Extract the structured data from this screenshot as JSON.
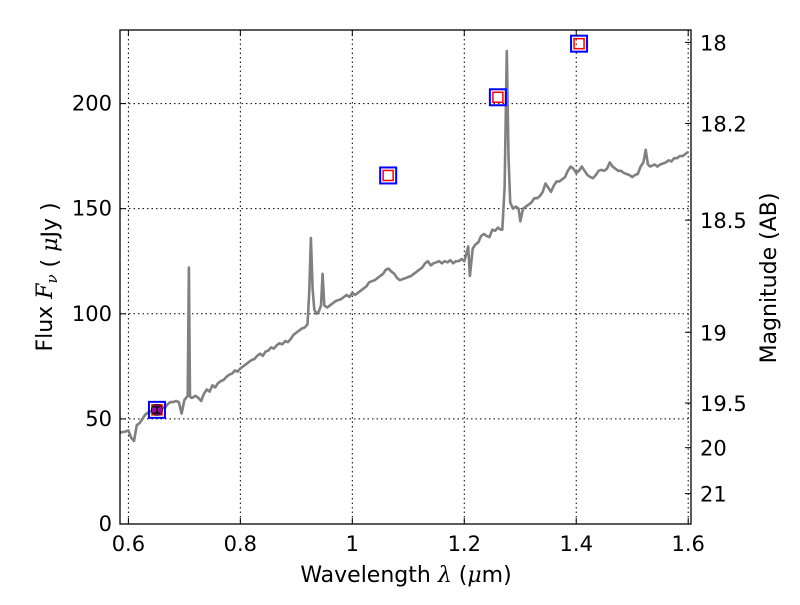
{
  "chart_data": {
    "type": "line",
    "xlabel": "Wavelength  λ (μm)",
    "ylabel": "Flux  F_ν  ( μJy )",
    "y2label": "Magnitude (AB)",
    "xlim": [
      0.585,
      1.605
    ],
    "ylim": [
      0,
      235
    ],
    "grid": true,
    "x_ticks": [
      {
        "value": 0.6,
        "label": "0.6"
      },
      {
        "value": 0.8,
        "label": "0.8"
      },
      {
        "value": 1.0,
        "label": "1"
      },
      {
        "value": 1.2,
        "label": "1.2"
      },
      {
        "value": 1.4,
        "label": "1.4"
      },
      {
        "value": 1.6,
        "label": "1.6"
      }
    ],
    "y_ticks": [
      {
        "value": 0,
        "label": "0"
      },
      {
        "value": 50,
        "label": "50"
      },
      {
        "value": 100,
        "label": "100"
      },
      {
        "value": 150,
        "label": "150"
      },
      {
        "value": 200,
        "label": "200"
      }
    ],
    "y2_ticks": [
      {
        "magnitude": 18,
        "label": "18"
      },
      {
        "magnitude": 18.2,
        "label": "18.2"
      },
      {
        "magnitude": 18.5,
        "label": "18.5"
      },
      {
        "magnitude": 19,
        "label": "19"
      },
      {
        "magnitude": 19.5,
        "label": "19.5"
      },
      {
        "magnitude": 20,
        "label": "20"
      },
      {
        "magnitude": 21,
        "label": "21"
      }
    ],
    "series": [
      {
        "kind": "spectrum",
        "color": "#808080",
        "points": [
          [
            0.585,
            43.5
          ],
          [
            0.595,
            44
          ],
          [
            0.6,
            44.5
          ],
          [
            0.605,
            41
          ],
          [
            0.61,
            39.5
          ],
          [
            0.615,
            47
          ],
          [
            0.62,
            48
          ],
          [
            0.625,
            50
          ],
          [
            0.63,
            52
          ],
          [
            0.635,
            53
          ],
          [
            0.64,
            53.5
          ],
          [
            0.645,
            55
          ],
          [
            0.65,
            55
          ],
          [
            0.655,
            55.5
          ],
          [
            0.66,
            56
          ],
          [
            0.665,
            55
          ],
          [
            0.67,
            57
          ],
          [
            0.675,
            58
          ],
          [
            0.68,
            58
          ],
          [
            0.685,
            58.5
          ],
          [
            0.69,
            58
          ],
          [
            0.695,
            52.5
          ],
          [
            0.7,
            59
          ],
          [
            0.703,
            60
          ],
          [
            0.706,
            61
          ],
          [
            0.708,
            122
          ],
          [
            0.71,
            60.5
          ],
          [
            0.713,
            60
          ],
          [
            0.717,
            60.5
          ],
          [
            0.72,
            61
          ],
          [
            0.725,
            60
          ],
          [
            0.73,
            58.5
          ],
          [
            0.735,
            62
          ],
          [
            0.74,
            64
          ],
          [
            0.745,
            63
          ],
          [
            0.75,
            66
          ],
          [
            0.755,
            65
          ],
          [
            0.76,
            67
          ],
          [
            0.765,
            68
          ],
          [
            0.77,
            68.5
          ],
          [
            0.775,
            70
          ],
          [
            0.78,
            71
          ],
          [
            0.785,
            71.5
          ],
          [
            0.79,
            73
          ],
          [
            0.795,
            72.5
          ],
          [
            0.8,
            74
          ],
          [
            0.805,
            75
          ],
          [
            0.81,
            76
          ],
          [
            0.815,
            77
          ],
          [
            0.82,
            78
          ],
          [
            0.825,
            78.5
          ],
          [
            0.83,
            80
          ],
          [
            0.835,
            81
          ],
          [
            0.84,
            80
          ],
          [
            0.845,
            82
          ],
          [
            0.85,
            82.5
          ],
          [
            0.855,
            84
          ],
          [
            0.86,
            83.5
          ],
          [
            0.865,
            85
          ],
          [
            0.87,
            86
          ],
          [
            0.875,
            85.5
          ],
          [
            0.88,
            87
          ],
          [
            0.885,
            86.5
          ],
          [
            0.89,
            88
          ],
          [
            0.895,
            90
          ],
          [
            0.9,
            91
          ],
          [
            0.905,
            92
          ],
          [
            0.91,
            93
          ],
          [
            0.915,
            93.5
          ],
          [
            0.92,
            95
          ],
          [
            0.923,
            110
          ],
          [
            0.926,
            136
          ],
          [
            0.929,
            112
          ],
          [
            0.932,
            102
          ],
          [
            0.936,
            100
          ],
          [
            0.94,
            101
          ],
          [
            0.944,
            104
          ],
          [
            0.947,
            119
          ],
          [
            0.95,
            104
          ],
          [
            0.955,
            103
          ],
          [
            0.96,
            104
          ],
          [
            0.965,
            105
          ],
          [
            0.97,
            106
          ],
          [
            0.975,
            106.5
          ],
          [
            0.98,
            107
          ],
          [
            0.985,
            108
          ],
          [
            0.99,
            109
          ],
          [
            0.995,
            108
          ],
          [
            1.0,
            110
          ],
          [
            1.005,
            109
          ],
          [
            1.01,
            110
          ],
          [
            1.015,
            111
          ],
          [
            1.02,
            112
          ],
          [
            1.025,
            113
          ],
          [
            1.03,
            115
          ],
          [
            1.035,
            115.5
          ],
          [
            1.04,
            116
          ],
          [
            1.045,
            117
          ],
          [
            1.05,
            118
          ],
          [
            1.055,
            119
          ],
          [
            1.06,
            121
          ],
          [
            1.065,
            121.5
          ],
          [
            1.07,
            120
          ],
          [
            1.075,
            119
          ],
          [
            1.08,
            117
          ],
          [
            1.085,
            116
          ],
          [
            1.09,
            116.5
          ],
          [
            1.095,
            117
          ],
          [
            1.1,
            117.5
          ],
          [
            1.105,
            118
          ],
          [
            1.11,
            119
          ],
          [
            1.115,
            120
          ],
          [
            1.12,
            121
          ],
          [
            1.125,
            122
          ],
          [
            1.13,
            124
          ],
          [
            1.135,
            125
          ],
          [
            1.14,
            123
          ],
          [
            1.145,
            124
          ],
          [
            1.15,
            124.5
          ],
          [
            1.155,
            125
          ],
          [
            1.16,
            124
          ],
          [
            1.165,
            125
          ],
          [
            1.17,
            124.5
          ],
          [
            1.175,
            125.5
          ],
          [
            1.18,
            124
          ],
          [
            1.185,
            125
          ],
          [
            1.19,
            125
          ],
          [
            1.195,
            126
          ],
          [
            1.2,
            125
          ],
          [
            1.203,
            128
          ],
          [
            1.207,
            132
          ],
          [
            1.21,
            118
          ],
          [
            1.215,
            131
          ],
          [
            1.22,
            133
          ],
          [
            1.225,
            134
          ],
          [
            1.23,
            137
          ],
          [
            1.235,
            138
          ],
          [
            1.24,
            137
          ],
          [
            1.245,
            136.5
          ],
          [
            1.25,
            140
          ],
          [
            1.255,
            139.5
          ],
          [
            1.26,
            141
          ],
          [
            1.265,
            140
          ],
          [
            1.268,
            140
          ],
          [
            1.272,
            160
          ],
          [
            1.276,
            225
          ],
          [
            1.279,
            175
          ],
          [
            1.282,
            153
          ],
          [
            1.287,
            150
          ],
          [
            1.292,
            151
          ],
          [
            1.297,
            150
          ],
          [
            1.3,
            144
          ],
          [
            1.305,
            150
          ],
          [
            1.31,
            151
          ],
          [
            1.315,
            152
          ],
          [
            1.32,
            153
          ],
          [
            1.325,
            155
          ],
          [
            1.33,
            155
          ],
          [
            1.335,
            156
          ],
          [
            1.34,
            158
          ],
          [
            1.345,
            162
          ],
          [
            1.35,
            160
          ],
          [
            1.355,
            158
          ],
          [
            1.36,
            161
          ],
          [
            1.365,
            163
          ],
          [
            1.37,
            163
          ],
          [
            1.375,
            164
          ],
          [
            1.38,
            165
          ],
          [
            1.385,
            168
          ],
          [
            1.39,
            170
          ],
          [
            1.395,
            169
          ],
          [
            1.4,
            167
          ],
          [
            1.405,
            168
          ],
          [
            1.41,
            170
          ],
          [
            1.415,
            168
          ],
          [
            1.42,
            166
          ],
          [
            1.425,
            165
          ],
          [
            1.43,
            164.5
          ],
          [
            1.435,
            166
          ],
          [
            1.44,
            168
          ],
          [
            1.445,
            168.5
          ],
          [
            1.45,
            168
          ],
          [
            1.455,
            169
          ],
          [
            1.46,
            172
          ],
          [
            1.465,
            170
          ],
          [
            1.47,
            169
          ],
          [
            1.475,
            168
          ],
          [
            1.48,
            168
          ],
          [
            1.485,
            167
          ],
          [
            1.49,
            166.5
          ],
          [
            1.495,
            166
          ],
          [
            1.5,
            165
          ],
          [
            1.505,
            166
          ],
          [
            1.51,
            166.5
          ],
          [
            1.515,
            170
          ],
          [
            1.52,
            172
          ],
          [
            1.524,
            178
          ],
          [
            1.528,
            171
          ],
          [
            1.532,
            170
          ],
          [
            1.54,
            171
          ],
          [
            1.545,
            170
          ],
          [
            1.55,
            171
          ],
          [
            1.555,
            171.5
          ],
          [
            1.56,
            172
          ],
          [
            1.565,
            173
          ],
          [
            1.57,
            172.5
          ],
          [
            1.575,
            174
          ],
          [
            1.58,
            174
          ],
          [
            1.585,
            175
          ],
          [
            1.59,
            175
          ],
          [
            1.595,
            176
          ],
          [
            1.6,
            177
          ]
        ]
      },
      {
        "kind": "model-photometry",
        "marker": "square",
        "outer_color": "#0000ff",
        "inner_color": "#ff0000",
        "points": [
          [
            0.651,
            54.3
          ],
          [
            1.064,
            165.8
          ],
          [
            1.26,
            203.0
          ],
          [
            1.405,
            228.5
          ]
        ]
      },
      {
        "kind": "observed-photometry",
        "marker": "circle",
        "color": "#aa00aa",
        "points": [
          {
            "x": 0.651,
            "y": 54.3,
            "yerr": 1.5
          }
        ]
      }
    ]
  }
}
